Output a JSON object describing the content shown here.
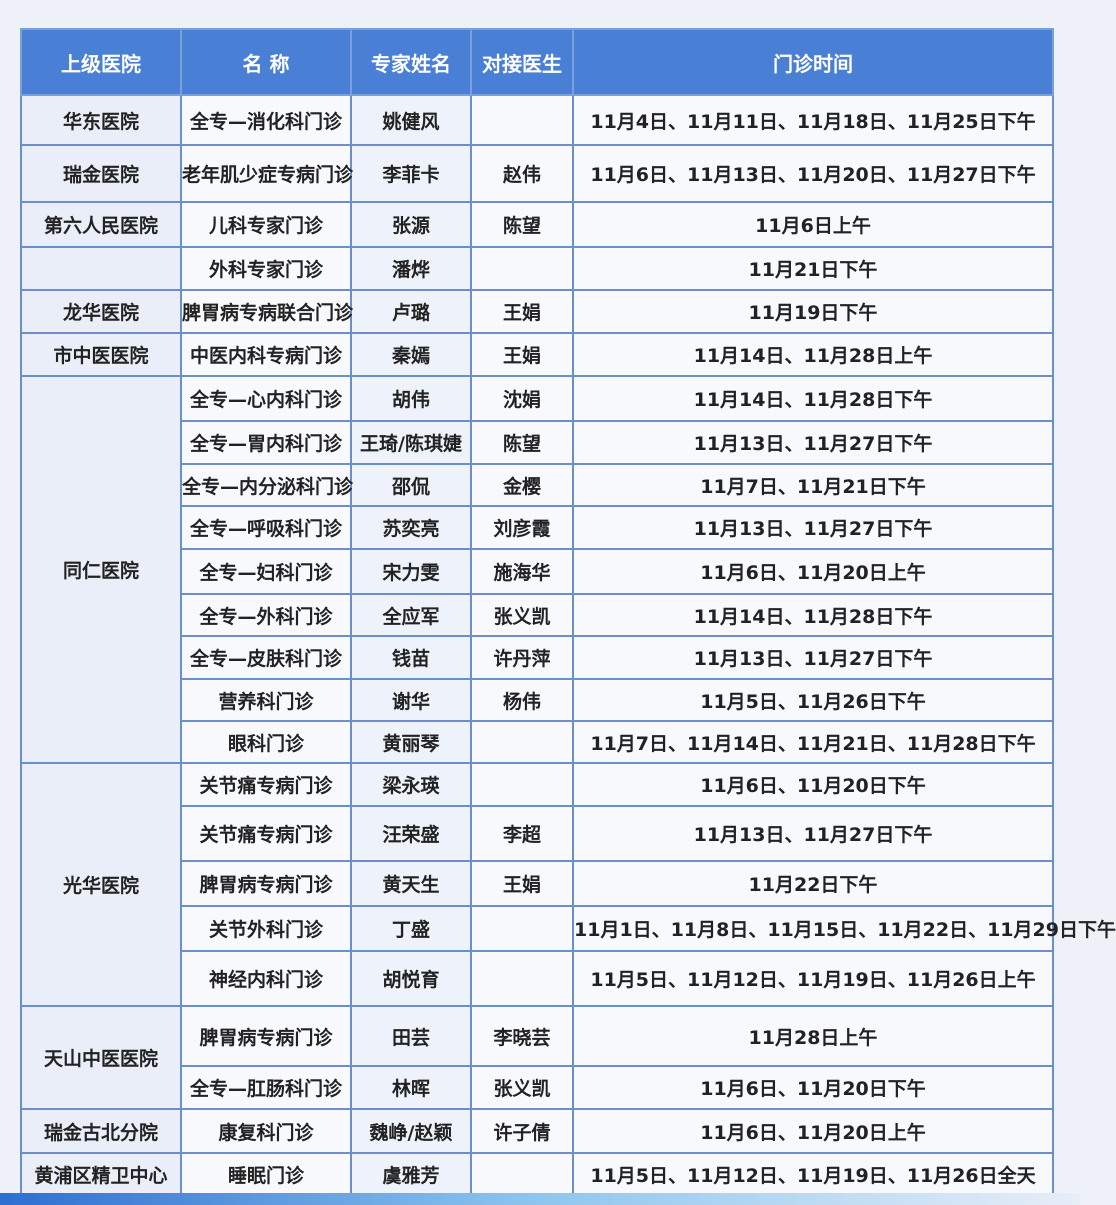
{
  "header": [
    "上级医院",
    "名 称",
    "专家姓名",
    "对接医生",
    "门诊时间"
  ],
  "groups": [
    {
      "hospital": "华东医院",
      "rows": [
        [
          "全专—消化科门诊",
          "姚健风",
          "",
          "11月4日、11月11日、11月18日、11月25日下午"
        ]
      ]
    },
    {
      "hospital": "瑞金医院",
      "rows": [
        [
          "老年肌少症专病门诊",
          "李菲卡",
          "赵伟",
          "11月6日、11月13日、11月20日、11月27日下午"
        ]
      ]
    },
    {
      "hospital": "第六人民医院",
      "rows": [
        [
          "儿科专家门诊",
          "张源",
          "陈望",
          "11月6日上午"
        ]
      ]
    },
    {
      "hospital": "",
      "rows": [
        [
          "外科专家门诊",
          "潘烨",
          "",
          "11月21日下午"
        ]
      ]
    },
    {
      "hospital": "龙华医院",
      "rows": [
        [
          "脾胃病专病联合门诊",
          "卢璐",
          "王娟",
          "11月19日下午"
        ]
      ]
    },
    {
      "hospital": "市中医医院",
      "rows": [
        [
          "中医内科专病门诊",
          "秦嫣",
          "王娟",
          "11月14日、11月28日上午"
        ]
      ]
    },
    {
      "hospital": "同仁医院",
      "rows": [
        [
          "全专—心内科门诊",
          "胡伟",
          "沈娟",
          "11月14日、11月28日下午"
        ],
        [
          "全专—胃内科门诊",
          "王琦/陈琪婕",
          "陈望",
          "11月13日、11月27日下午"
        ],
        [
          "全专—内分泌科门诊",
          "邵侃",
          "金樱",
          "11月7日、11月21日下午"
        ],
        [
          "全专—呼吸科门诊",
          "苏奕亮",
          "刘彦霞",
          "11月13日、11月27日下午"
        ],
        [
          "全专—妇科门诊",
          "宋力雯",
          "施海华",
          "11月6日、11月20日上午"
        ],
        [
          "全专—外科门诊",
          "全应军",
          "张义凯",
          "11月14日、11月28日下午"
        ],
        [
          "全专—皮肤科门诊",
          "钱苗",
          "许丹萍",
          "11月13日、11月27日下午"
        ],
        [
          "营养科门诊",
          "谢华",
          "杨伟",
          "11月5日、11月26日下午"
        ],
        [
          "眼科门诊",
          "黄丽琴",
          "",
          "11月7日、11月14日、11月21日、11月28日下午"
        ]
      ]
    },
    {
      "hospital": "光华医院",
      "rows": [
        [
          "关节痛专病门诊",
          "梁永瑛",
          "",
          "11月6日、11月20日下午"
        ],
        [
          "关节痛专病门诊",
          "汪荣盛",
          "李超",
          "11月13日、11月27日下午"
        ],
        [
          "脾胃病专病门诊",
          "黄天生",
          "王娟",
          "11月22日下午"
        ],
        [
          "关节外科门诊",
          "丁盛",
          "",
          "11月1日、11月8日、11月15日、11月22日、11月29日下午"
        ],
        [
          "神经内科门诊",
          "胡悦育",
          "",
          "11月5日、11月12日、11月19日、11月26日上午"
        ]
      ]
    },
    {
      "hospital": "天山中医医院",
      "rows": [
        [
          "脾胃病专病门诊",
          "田芸",
          "李晓芸",
          "11月28日上午"
        ],
        [
          "全专—肛肠科门诊",
          "林晖",
          "张义凯",
          "11月6日、11月20日下午"
        ]
      ]
    },
    {
      "hospital": "瑞金古北分院",
      "rows": [
        [
          "康复科门诊",
          "魏峥/赵颖",
          "许子倩",
          "11月6日、11月20日上午"
        ]
      ]
    },
    {
      "hospital": "黄浦区精卫中心",
      "rows": [
        [
          "睡眠门诊",
          "虞雅芳",
          "",
          "11月5日、11月12日、11月19日、11月26日全天"
        ]
      ]
    }
  ]
}
